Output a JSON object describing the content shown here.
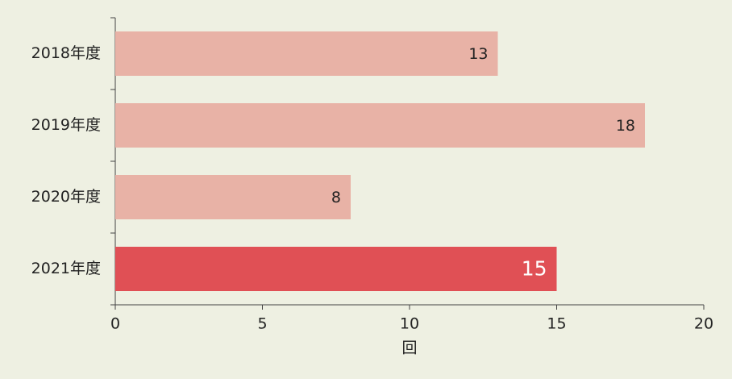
{
  "chart_data": {
    "type": "hbar",
    "categories": [
      "2018年度",
      "2019年度",
      "2020年度",
      "2021年度"
    ],
    "values": [
      13,
      18,
      8,
      15
    ],
    "colors": [
      "#e8b2a6",
      "#e8b2a6",
      "#e8b2a6",
      "#e05055"
    ],
    "xlabel": "回",
    "xlim": [
      0,
      20
    ],
    "xticks": [
      0,
      5,
      10,
      15,
      20
    ]
  }
}
